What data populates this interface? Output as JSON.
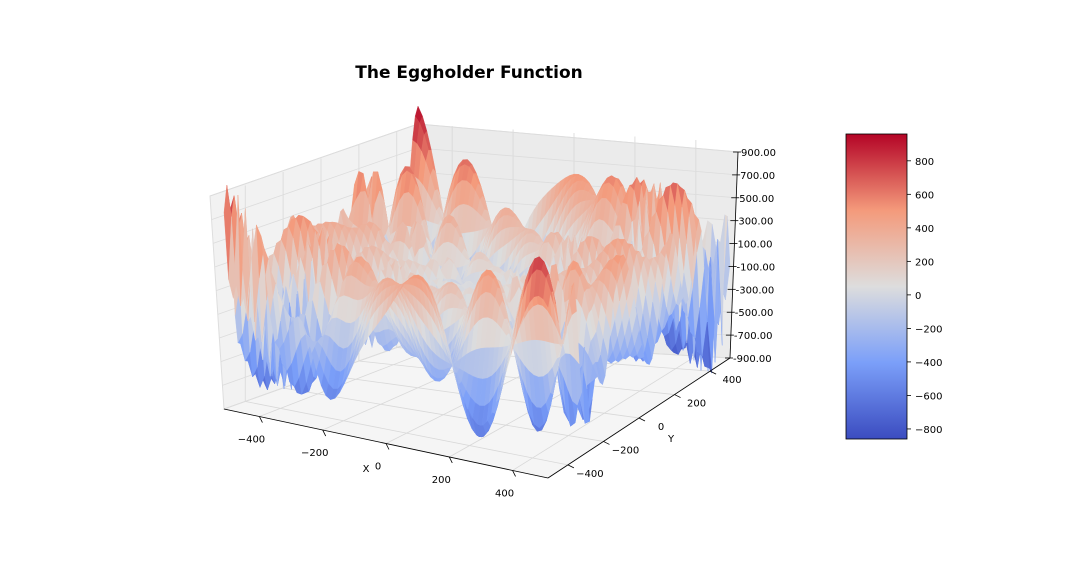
{
  "chart_data": {
    "type": "surface3d",
    "title": "The Eggholder Function",
    "xlabel": "X",
    "ylabel": "Y",
    "zlabel": "",
    "colormap": "coolwarm",
    "colormap_colors": [
      "#3b4cc0",
      "#dddddd",
      "#b40426"
    ],
    "x_ticks": [
      "−400",
      "−200",
      "0",
      "200",
      "400"
    ],
    "y_ticks": [
      "−400",
      "−200",
      "0",
      "200",
      "400"
    ],
    "z_ticks": [
      "-900.00",
      "-700.00",
      "-500.00",
      "-300.00",
      "-100.00",
      "100.00",
      "300.00",
      "500.00",
      "700.00",
      "900.00"
    ],
    "xlim": [
      -512,
      512
    ],
    "ylim": [
      -512,
      512
    ],
    "zlim": [
      -900,
      900
    ],
    "colorbar_ticks": [
      "800",
      "600",
      "400",
      "200",
      "0",
      "−200",
      "−400",
      "−600",
      "−800"
    ],
    "colorbar_range": [
      -860,
      960
    ],
    "surface_range": [
      -959.6,
      1049.1
    ],
    "grid": true
  }
}
